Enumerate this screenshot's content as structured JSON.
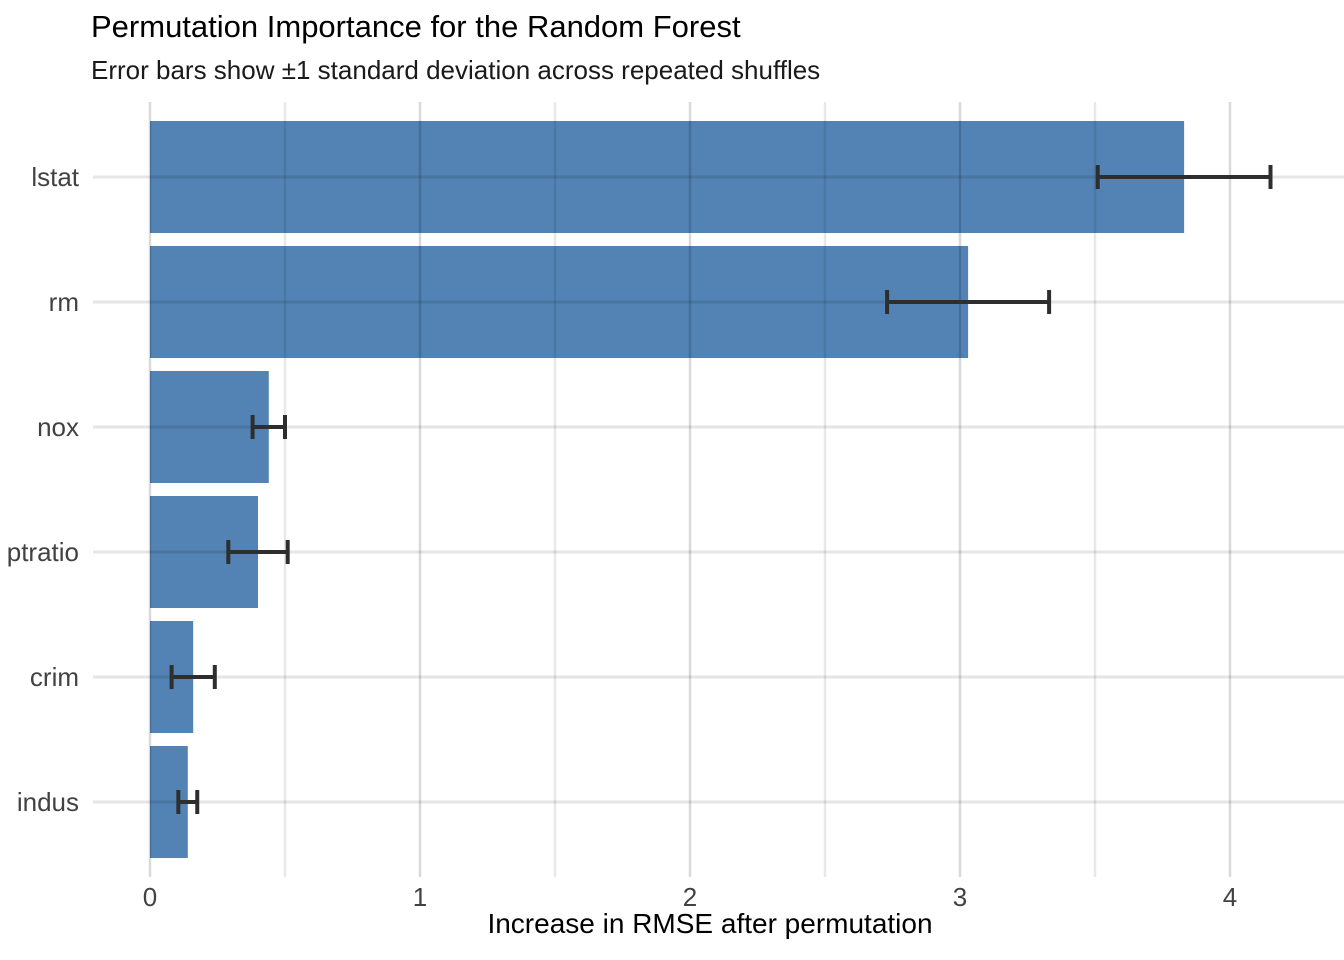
{
  "chart_data": {
    "type": "bar",
    "orientation": "horizontal",
    "title": "Permutation Importance for the Random Forest",
    "subtitle": "Error bars show ±1 standard deviation across repeated shuffles",
    "xlabel": "Increase in RMSE after permutation",
    "ylabel": "",
    "categories": [
      "lstat",
      "rm",
      "nox",
      "ptratio",
      "crim",
      "indus"
    ],
    "series": [
      {
        "name": "Increase in RMSE after permutation",
        "values": [
          3.83,
          3.03,
          0.44,
          0.4,
          0.16,
          0.14
        ],
        "errors": [
          0.32,
          0.3,
          0.06,
          0.11,
          0.08,
          0.035
        ]
      }
    ],
    "error_bar_meaning": "±1 standard deviation across repeated shuffles",
    "xticks": [
      0,
      1,
      2,
      3,
      4
    ],
    "minor_tick_interval": 0.5,
    "xlim": [
      -0.21,
      4.42
    ],
    "grid": "major-and-minor-vertical-plus-category-horizontal",
    "legend": "none",
    "colors": {
      "bar_fill": "#5283b4",
      "error_bar": "#2e2e2e",
      "grid_major": "rgba(0,0,0,0.15)",
      "grid_minor": "rgba(0,0,0,0.09)",
      "grid_horizontal": "rgba(0,0,0,0.10)",
      "tick_label": "#424242",
      "title_text": "#000000",
      "background": "#ffffff"
    }
  }
}
